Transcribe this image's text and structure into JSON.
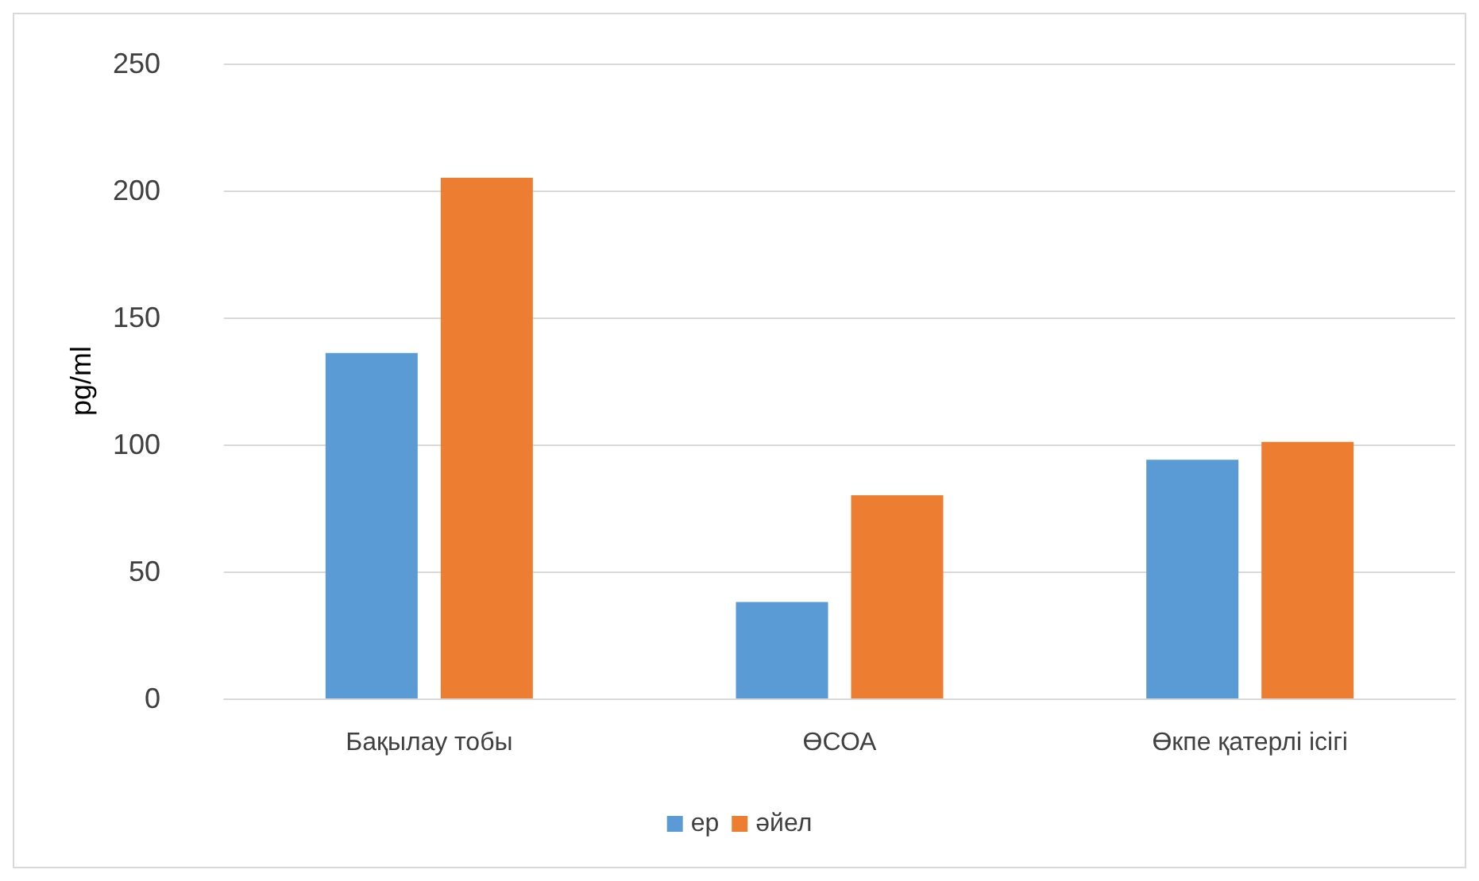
{
  "chart_data": {
    "type": "bar",
    "ylabel": "pg/ml",
    "categories": [
      "Бақылау тобы",
      "ӨСОА",
      "Өкпе қатерлі ісігі"
    ],
    "series": [
      {
        "name": "ер",
        "color": "#5b9bd5",
        "values": [
          136,
          38,
          94
        ]
      },
      {
        "name": "әйел",
        "color": "#ed7d31",
        "values": [
          205,
          80,
          101
        ]
      }
    ],
    "ylim": [
      0,
      250
    ],
    "yticks": [
      0,
      50,
      100,
      150,
      200,
      250
    ],
    "grid": "y",
    "legend": "bottom"
  }
}
